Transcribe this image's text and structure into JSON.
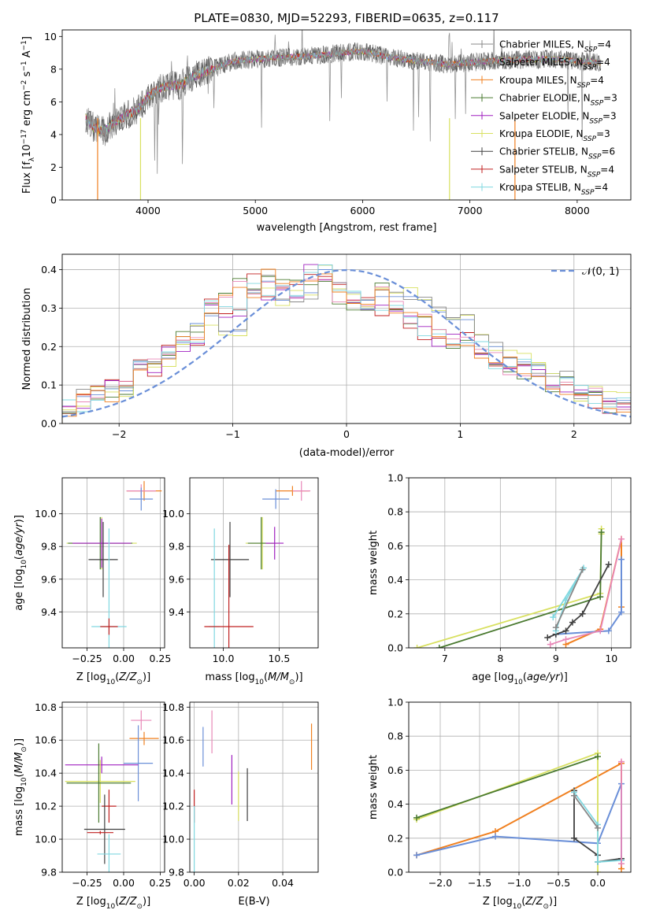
{
  "chart_data": [
    {
      "type": "line",
      "title": "PLATE=0830, MJD=52293, FIBERID=0635, z=0.117",
      "xlabel": "wavelength [Angstrom, rest frame]",
      "ylabel": "Flux [f_λ10^−17 erg cm^−2 s^−1 A^−1]",
      "xlim": [
        3200,
        8500
      ],
      "ylim": [
        0,
        10.4
      ],
      "xticks": [
        4000,
        5000,
        6000,
        7000,
        8000
      ],
      "yticks": [
        0,
        2,
        4,
        6,
        8,
        10
      ],
      "grid": false,
      "legend_position": "right",
      "series": [
        {
          "name": "Chabrier MILES, N_SSP=4",
          "color": "#888888"
        },
        {
          "name": "Salpeter MILES, N_SSP=4",
          "color": "#888888"
        },
        {
          "name": "Kroupa MILES, N_SSP=4",
          "color": "#f08020"
        },
        {
          "name": "Chabrier ELODIE, N_SSP=3",
          "color": "#4a7a30"
        },
        {
          "name": "Salpeter ELODIE, N_SSP=3",
          "color": "#a020c0"
        },
        {
          "name": "Kroupa ELODIE, N_SSP=3",
          "color": "#d8e060"
        },
        {
          "name": "Chabrier STELIB, N_SSP=6",
          "color": "#404040"
        },
        {
          "name": "Salpeter STELIB, N_SSP=4",
          "color": "#c02020"
        },
        {
          "name": "Kroupa STELIB, N_SSP=4",
          "color": "#80d8e0"
        }
      ],
      "continuum": {
        "x": [
          3420,
          3500,
          3600,
          3700,
          3800,
          3900,
          4000,
          4100,
          4200,
          4300,
          4400,
          4600,
          4800,
          5000,
          5200,
          5500,
          5800,
          6000,
          6200,
          6500,
          6800,
          7000,
          7200,
          7500,
          7800,
          8000,
          8220
        ],
        "y": [
          5.0,
          4.4,
          4.2,
          4.8,
          5.2,
          5.5,
          6.3,
          6.8,
          7.0,
          7.0,
          7.5,
          8.0,
          8.5,
          8.6,
          8.7,
          8.8,
          9.0,
          9.1,
          8.8,
          8.5,
          8.3,
          8.4,
          8.5,
          8.6,
          8.6,
          8.5,
          8.4
        ]
      }
    },
    {
      "type": "histogram",
      "xlabel": "(data-model)/error",
      "ylabel": "Normed distribution",
      "xlim": [
        -2.5,
        2.5
      ],
      "ylim": [
        0,
        0.44
      ],
      "xticks": [
        -2,
        -1,
        0,
        1,
        2
      ],
      "yticks": [
        0.0,
        0.1,
        0.2,
        0.3,
        0.4
      ],
      "grid": true,
      "legend_position": "top-right",
      "legend_label": "N(0,1)",
      "reference_curve": {
        "type": "gaussian",
        "mean": 0,
        "sigma": 1,
        "color": "#6a8fd8"
      },
      "bin_width": 0.1,
      "bin_start": -2.5,
      "series_colors": [
        "#6a8fd8",
        "#c02020",
        "#4a7a30",
        "#d8e060",
        "#a020c0",
        "#e888b8",
        "#888888",
        "#80d8e0",
        "#f08020"
      ],
      "series_values": [
        [
          0.03,
          0.04,
          0.06,
          0.07,
          0.07,
          0.08,
          0.09,
          0.08,
          0.07,
          0.1,
          0.12,
          0.14,
          0.15,
          0.16,
          0.14,
          0.17,
          0.19,
          0.2,
          0.23,
          0.24,
          0.26,
          0.27,
          0.29,
          0.31,
          0.32,
          0.34,
          0.35,
          0.33,
          0.36,
          0.34,
          0.37,
          0.33,
          0.38,
          0.36,
          0.39,
          0.35,
          0.37,
          0.34,
          0.36,
          0.33,
          0.35,
          0.32,
          0.34,
          0.31,
          0.33,
          0.3,
          0.32,
          0.29,
          0.3,
          0.28,
          0.29,
          0.26,
          0.25,
          0.27,
          0.24,
          0.22,
          0.23,
          0.2,
          0.21,
          0.19,
          0.17,
          0.18,
          0.16,
          0.15,
          0.14,
          0.15,
          0.13,
          0.12,
          0.13,
          0.11,
          0.12,
          0.1,
          0.1,
          0.09,
          0.09,
          0.08,
          0.07,
          0.08,
          0.07,
          0.06,
          0.06,
          0.05,
          0.05,
          0.04,
          0.05,
          0.04,
          0.04,
          0.03,
          0.03,
          0.02,
          0.03,
          0.02,
          0.02,
          0.01,
          0.02,
          0.01,
          0.01,
          0.01,
          0.01,
          0.01
        ],
        [
          0.02,
          0.05,
          0.06,
          0.07,
          0.06,
          0.08,
          0.09,
          0.07,
          0.08,
          0.11,
          0.13,
          0.13,
          0.16,
          0.15,
          0.15,
          0.16,
          0.2,
          0.21,
          0.22,
          0.25,
          0.25,
          0.28,
          0.3,
          0.3,
          0.33,
          0.33,
          0.37,
          0.34,
          0.35,
          0.33,
          0.38,
          0.34,
          0.37,
          0.37,
          0.38,
          0.34,
          0.38,
          0.33,
          0.35,
          0.34,
          0.36,
          0.31,
          0.33,
          0.32,
          0.34,
          0.29,
          0.31,
          0.28,
          0.31,
          0.27,
          0.28,
          0.27,
          0.24,
          0.26,
          0.25,
          0.21,
          0.22,
          0.21,
          0.2,
          0.18,
          0.18,
          0.17,
          0.15,
          0.16,
          0.13,
          0.14,
          0.14,
          0.11,
          0.12,
          0.12,
          0.11,
          0.1,
          0.09,
          0.1,
          0.08,
          0.08,
          0.08,
          0.07,
          0.06,
          0.07,
          0.05,
          0.06,
          0.04,
          0.05,
          0.04,
          0.05,
          0.03,
          0.04,
          0.02,
          0.03,
          0.02,
          0.03,
          0.01,
          0.02,
          0.01,
          0.02,
          0.01,
          0.01,
          0.01,
          0.01
        ]
      ],
      "bin_values": [
        [
          0.045,
          0.07,
          0.075,
          0.09,
          0.085,
          0.16,
          0.16,
          0.17,
          0.21,
          0.26,
          0.28,
          0.24,
          0.24,
          0.34,
          0.37,
          0.32,
          0.33,
          0.34,
          0.4,
          0.35,
          0.34,
          0.32,
          0.33,
          0.33,
          0.33,
          0.32,
          0.29,
          0.27,
          0.27,
          0.23,
          0.2,
          0.17,
          0.16,
          0.15,
          0.13,
          0.12,
          0.08,
          0.075,
          0.065,
          0.06
        ],
        [
          0.04,
          0.055,
          0.08,
          0.09,
          0.09,
          0.15,
          0.14,
          0.19,
          0.2,
          0.22,
          0.3,
          0.3,
          0.3,
          0.37,
          0.33,
          0.36,
          0.34,
          0.41,
          0.39,
          0.36,
          0.33,
          0.31,
          0.3,
          0.29,
          0.26,
          0.24,
          0.22,
          0.23,
          0.22,
          0.19,
          0.15,
          0.13,
          0.15,
          0.14,
          0.1,
          0.1,
          0.08,
          0.06,
          0.05,
          0.045
        ],
        [
          0.04,
          0.06,
          0.075,
          0.08,
          0.09,
          0.13,
          0.15,
          0.18,
          0.24,
          0.23,
          0.31,
          0.32,
          0.36,
          0.33,
          0.39,
          0.37,
          0.35,
          0.37,
          0.38,
          0.33,
          0.31,
          0.3,
          0.35,
          0.3,
          0.27,
          0.28,
          0.25,
          0.2,
          0.22,
          0.18,
          0.17,
          0.15,
          0.13,
          0.13,
          0.1,
          0.1,
          0.09,
          0.07,
          0.05,
          0.04
        ]
      ]
    },
    {
      "type": "scatter",
      "subtype": "errorbar",
      "xlabel": "Z [log10(Z/Z☉)]",
      "ylabel": "age  [log10(age/yr)]",
      "xlim": [
        -0.42,
        0.28
      ],
      "ylim": [
        9.18,
        10.22
      ],
      "xticks": [
        -0.25,
        0.0,
        0.25
      ],
      "yticks": [
        9.4,
        9.6,
        9.8,
        10.0
      ],
      "grid": true,
      "points": [
        {
          "color": "#f08020",
          "x": 0.14,
          "y": 10.14,
          "xerr": 0.12,
          "yerr": 0.06
        },
        {
          "color": "#e888b8",
          "x": 0.12,
          "y": 10.14,
          "xerr": 0.1,
          "yerr": 0.04
        },
        {
          "color": "#6a8fd8",
          "x": 0.12,
          "y": 10.09,
          "xerr": 0.08,
          "yerr": 0.07
        },
        {
          "color": "#d8e060",
          "x": -0.15,
          "y": 9.82,
          "xerr": 0.24,
          "yerr": 0.16
        },
        {
          "color": "#4a7a30",
          "x": -0.16,
          "y": 9.82,
          "xerr": 0.22,
          "yerr": 0.16
        },
        {
          "color": "#a020c0",
          "x": -0.15,
          "y": 9.82,
          "xerr": 0.2,
          "yerr": 0.15
        },
        {
          "color": "#404040",
          "x": -0.14,
          "y": 9.72,
          "xerr": 0.1,
          "yerr": 0.23
        },
        {
          "color": "#80d8e0",
          "x": -0.1,
          "y": 9.31,
          "xerr": 0.12,
          "yerr": 0.6
        },
        {
          "color": "#c02020",
          "x": -0.1,
          "y": 9.31,
          "xerr": 0.06,
          "yerr": 0.05
        }
      ]
    },
    {
      "type": "scatter",
      "subtype": "errorbar",
      "xlabel": "mass [log10(M/M☉)]",
      "ylabel": "",
      "xlim": [
        9.7,
        10.85
      ],
      "ylim": [
        9.18,
        10.22
      ],
      "xticks": [
        10.0,
        10.5
      ],
      "yticks": [
        9.4,
        9.6,
        9.8,
        10.0
      ],
      "grid": true,
      "points": [
        {
          "color": "#f08020",
          "x": 10.62,
          "y": 10.14,
          "xerr": 0.15,
          "yerr": 0.03
        },
        {
          "color": "#e888b8",
          "x": 10.7,
          "y": 10.14,
          "xerr": 0.08,
          "yerr": 0.06
        },
        {
          "color": "#6a8fd8",
          "x": 10.47,
          "y": 10.09,
          "xerr": 0.12,
          "yerr": 0.06
        },
        {
          "color": "#d8e060",
          "x": 10.35,
          "y": 9.82,
          "xerr": 0.15,
          "yerr": 0.16
        },
        {
          "color": "#4a7a30",
          "x": 10.34,
          "y": 9.82,
          "xerr": 0.12,
          "yerr": 0.16
        },
        {
          "color": "#a020c0",
          "x": 10.46,
          "y": 9.82,
          "xerr": 0.08,
          "yerr": 0.1
        },
        {
          "color": "#404040",
          "x": 10.06,
          "y": 9.72,
          "xerr": 0.17,
          "yerr": 0.23
        },
        {
          "color": "#80d8e0",
          "x": 9.92,
          "y": 9.31,
          "xerr": 0.05,
          "yerr": 0.6
        },
        {
          "color": "#c02020",
          "x": 10.05,
          "y": 9.31,
          "xerr": 0.22,
          "yerr": 0.5
        }
      ]
    },
    {
      "type": "line",
      "xlabel": "age  [log10(age/yr)]",
      "ylabel": "mass weight",
      "xlim": [
        6.35,
        10.35
      ],
      "ylim": [
        0,
        1.0
      ],
      "xticks": [
        7,
        8,
        9,
        10
      ],
      "yticks": [
        0.0,
        0.2,
        0.4,
        0.6,
        0.8,
        1.0
      ],
      "grid": true,
      "series": [
        {
          "color": "#f08020",
          "x": [
            9.18,
            9.8,
            10.18,
            10.18
          ],
          "y": [
            0.02,
            0.11,
            0.64,
            0.24
          ]
        },
        {
          "color": "#6a8fd8",
          "x": [
            10.18,
            10.18,
            9.95,
            9.0
          ],
          "y": [
            0.52,
            0.21,
            0.1,
            0.08
          ]
        },
        {
          "color": "#e888b8",
          "x": [
            8.9,
            9.18,
            9.8,
            10.18
          ],
          "y": [
            0.02,
            0.05,
            0.1,
            0.64
          ]
        },
        {
          "color": "#d8e060",
          "x": [
            6.5,
            9.8,
            9.82,
            9.82
          ],
          "y": [
            0.0,
            0.32,
            0.7,
            0.67
          ]
        },
        {
          "color": "#4a7a30",
          "x": [
            6.9,
            9.8,
            9.82
          ],
          "y": [
            0.0,
            0.3,
            0.68
          ]
        },
        {
          "color": "#404040",
          "x": [
            8.85,
            9.0,
            9.18,
            9.3,
            9.48,
            9.95
          ],
          "y": [
            0.06,
            0.08,
            0.1,
            0.15,
            0.2,
            0.49
          ]
        },
        {
          "color": "#80d8e0",
          "x": [
            9.0,
            9.18,
            9.5,
            8.95
          ],
          "y": [
            0.1,
            0.28,
            0.47,
            0.18
          ]
        },
        {
          "color": "#888888",
          "x": [
            9.0,
            9.48
          ],
          "y": [
            0.12,
            0.46
          ]
        }
      ]
    },
    {
      "type": "scatter",
      "subtype": "errorbar",
      "xlabel": "Z [log10(Z/Z☉)]",
      "ylabel": "mass [log10(M/M☉)]",
      "xlim": [
        -0.42,
        0.28
      ],
      "ylim": [
        9.8,
        10.83
      ],
      "xticks": [
        -0.25,
        0.0,
        0.25
      ],
      "yticks": [
        9.8,
        10.0,
        10.2,
        10.4,
        10.6,
        10.8
      ],
      "grid": true,
      "points": [
        {
          "color": "#e888b8",
          "x": 0.12,
          "y": 10.72,
          "xerr": 0.07,
          "yerr": 0.06
        },
        {
          "color": "#f08020",
          "x": 0.14,
          "y": 10.61,
          "xerr": 0.1,
          "yerr": 0.04
        },
        {
          "color": "#6a8fd8",
          "x": 0.1,
          "y": 10.46,
          "xerr": 0.1,
          "yerr": 0.23
        },
        {
          "color": "#a020c0",
          "x": -0.15,
          "y": 10.45,
          "xerr": 0.25,
          "yerr": 0.05
        },
        {
          "color": "#d8e060",
          "x": -0.16,
          "y": 10.35,
          "xerr": 0.24,
          "yerr": 0.13
        },
        {
          "color": "#4a7a30",
          "x": -0.17,
          "y": 10.34,
          "xerr": 0.22,
          "yerr": 0.24
        },
        {
          "color": "#c02020",
          "x": -0.1,
          "y": 10.2,
          "xerr": 0.05,
          "yerr": 0.1
        },
        {
          "color": "#404040",
          "x": -0.13,
          "y": 10.06,
          "xerr": 0.14,
          "yerr": 0.21
        },
        {
          "color": "#c02020",
          "x": -0.16,
          "y": 10.04,
          "xerr": 0.09,
          "yerr": 0.01
        },
        {
          "color": "#80d8e0",
          "x": -0.1,
          "y": 9.91,
          "xerr": 0.08,
          "yerr": 0.12
        }
      ]
    },
    {
      "type": "scatter",
      "subtype": "errorbar",
      "xlabel": "E(B-V)",
      "ylabel": "",
      "xlim": [
        -0.002,
        0.056
      ],
      "ylim": [
        9.8,
        10.83
      ],
      "xticks": [
        0.0,
        0.02,
        0.04
      ],
      "yticks": [
        9.8,
        10.0,
        10.2,
        10.4,
        10.6,
        10.8
      ],
      "grid": true,
      "points": [
        {
          "color": "#6a8fd8",
          "x": 0.004,
          "y": 10.56,
          "xerr": 0,
          "yerr": 0.12
        },
        {
          "color": "#e888b8",
          "x": 0.008,
          "y": 10.65,
          "xerr": 0,
          "yerr": 0.13
        },
        {
          "color": "#a020c0",
          "x": 0.017,
          "y": 10.36,
          "xerr": 0,
          "yerr": 0.15
        },
        {
          "color": "#d8e060",
          "x": 0.02,
          "y": 10.26,
          "xerr": 0,
          "yerr": 0.15
        },
        {
          "color": "#404040",
          "x": 0.024,
          "y": 10.27,
          "xerr": 0,
          "yerr": 0.16
        },
        {
          "color": "#c02020",
          "x": 0.0,
          "y": 10.2,
          "xerr": 0,
          "yerr": 0.1
        },
        {
          "color": "#80d8e0",
          "x": 0.0,
          "y": 10.0,
          "xerr": 0,
          "yerr": 0.2
        },
        {
          "color": "#f08020",
          "x": 0.053,
          "y": 10.56,
          "xerr": 0,
          "yerr": 0.14
        }
      ]
    },
    {
      "type": "line",
      "xlabel": "Z [log10(Z/Z☉)]",
      "ylabel": "mass weight",
      "xlim": [
        -2.4,
        0.42
      ],
      "ylim": [
        0,
        1.0
      ],
      "xticks": [
        -2.0,
        -1.5,
        -1.0,
        -0.5,
        0.0
      ],
      "yticks": [
        0.0,
        0.2,
        0.4,
        0.6,
        0.8,
        1.0
      ],
      "grid": true,
      "series": [
        {
          "color": "#f08020",
          "x": [
            -2.3,
            -1.3,
            0.3,
            0.3
          ],
          "y": [
            0.1,
            0.24,
            0.64,
            0.02
          ]
        },
        {
          "color": "#6a8fd8",
          "x": [
            -2.3,
            -1.3,
            0.0,
            0.3,
            0.3
          ],
          "y": [
            0.1,
            0.21,
            0.17,
            0.52,
            0.07
          ]
        },
        {
          "color": "#d8e060",
          "x": [
            -2.3,
            0.0,
            0.0
          ],
          "y": [
            0.31,
            0.7,
            0.0
          ]
        },
        {
          "color": "#4a7a30",
          "x": [
            -2.3,
            0.0
          ],
          "y": [
            0.32,
            0.68
          ]
        },
        {
          "color": "#404040",
          "x": [
            -0.3,
            -0.3,
            0.0,
            0.0,
            0.3
          ],
          "y": [
            0.48,
            0.2,
            0.1,
            0.06,
            0.08
          ]
        },
        {
          "color": "#80d8e0",
          "x": [
            -0.3,
            0.0,
            0.0,
            0.3
          ],
          "y": [
            0.47,
            0.28,
            0.06,
            0.07
          ]
        },
        {
          "color": "#e888b8",
          "x": [
            0.3,
            0.3
          ],
          "y": [
            0.65,
            0.05
          ]
        },
        {
          "color": "#888888",
          "x": [
            -0.3,
            0.0
          ],
          "y": [
            0.45,
            0.26
          ]
        }
      ]
    }
  ]
}
